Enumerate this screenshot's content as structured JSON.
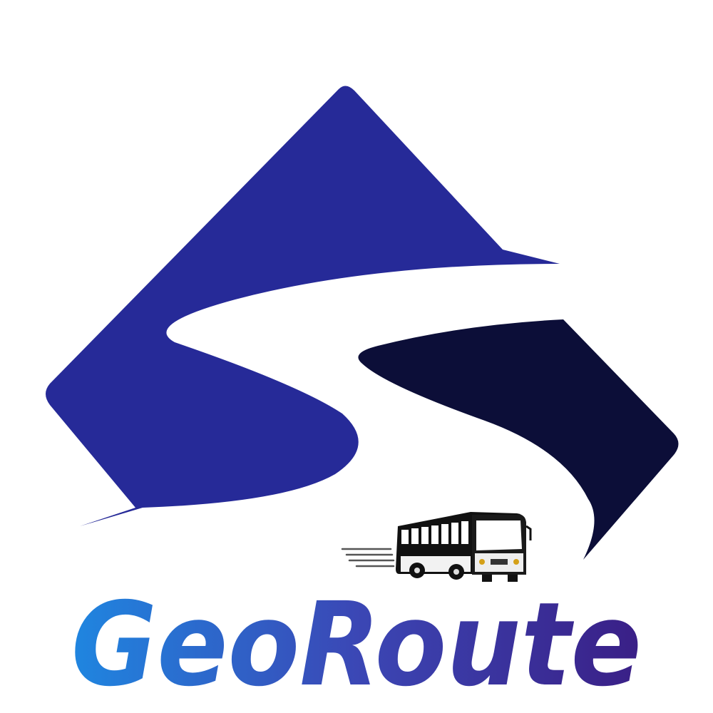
{
  "logo": {
    "wordmark": "GeoRoute",
    "emblem_icon": "mountain-road-icon",
    "vehicle_icon": "bus-icon"
  },
  "colors": {
    "mountain_left": "#262a98",
    "mountain_right": "#0c0e38",
    "wordmark_gradient_start": "#1f86e0",
    "wordmark_gradient_mid": "#3b47b5",
    "wordmark_gradient_end": "#3a1f86",
    "bus_body": "#111111",
    "bus_window": "#ffffff",
    "background": "#ffffff"
  }
}
